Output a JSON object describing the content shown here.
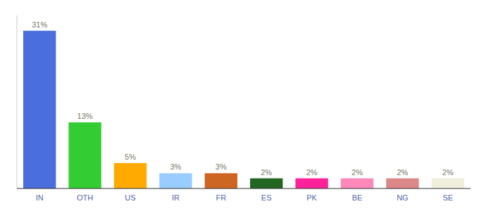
{
  "chart_data": {
    "type": "bar",
    "categories": [
      "IN",
      "OTH",
      "US",
      "IR",
      "FR",
      "ES",
      "PK",
      "BE",
      "NG",
      "SE"
    ],
    "values": [
      31,
      13,
      5,
      3,
      3,
      2,
      2,
      2,
      2,
      2
    ],
    "value_labels": [
      "31%",
      "13%",
      "5%",
      "3%",
      "3%",
      "2%",
      "2%",
      "2%",
      "2%",
      "2%"
    ],
    "colors": [
      "#4a6fdc",
      "#33cc33",
      "#ffaa00",
      "#99ccff",
      "#cc6622",
      "#226622",
      "#ff2299",
      "#ff88bb",
      "#dd8888",
      "#f0eedd"
    ],
    "ylim": [
      0,
      34
    ],
    "data_labels": true,
    "tick_labels": "x",
    "grid": false
  }
}
